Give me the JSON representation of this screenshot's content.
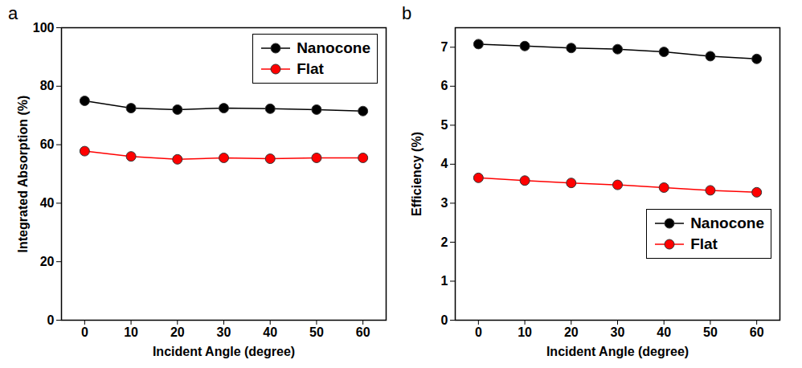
{
  "chart_data": [
    {
      "type": "line",
      "panel_label": "a",
      "x_label": "Incident Angle (degree)",
      "y_label": "Integrated Absorption (%)",
      "x": [
        0,
        10,
        20,
        30,
        40,
        50,
        60
      ],
      "series": [
        {
          "name": "Nanocone",
          "color": "#000000",
          "marker": "circle",
          "values": [
            75,
            72.5,
            72,
            72.5,
            72.3,
            72,
            71.5
          ]
        },
        {
          "name": "Flat",
          "color": "#ff0000",
          "marker": "circle",
          "values": [
            57.8,
            56,
            55,
            55.5,
            55.2,
            55.5,
            55.5
          ]
        }
      ],
      "xlim": [
        -5,
        65
      ],
      "xticks": [
        0,
        10,
        20,
        30,
        40,
        50,
        60
      ],
      "ylim": [
        0,
        100
      ],
      "yticks": [
        0,
        20,
        40,
        60,
        80,
        100
      ],
      "grid": false,
      "legend": "upper right"
    },
    {
      "type": "line",
      "panel_label": "b",
      "x_label": "Incident Angle (degree)",
      "y_label": "Efficiency (%)",
      "x": [
        0,
        10,
        20,
        30,
        40,
        50,
        60
      ],
      "series": [
        {
          "name": "Nanocone",
          "color": "#000000",
          "marker": "circle",
          "values": [
            7.08,
            7.03,
            6.98,
            6.95,
            6.88,
            6.77,
            6.7
          ]
        },
        {
          "name": "Flat",
          "color": "#ff0000",
          "marker": "circle",
          "values": [
            3.65,
            3.58,
            3.52,
            3.47,
            3.4,
            3.33,
            3.28
          ]
        }
      ],
      "xlim": [
        -5,
        65
      ],
      "xticks": [
        0,
        10,
        20,
        30,
        40,
        50,
        60
      ],
      "ylim": [
        0,
        7.5
      ],
      "yticks": [
        0,
        1,
        2,
        3,
        4,
        5,
        6,
        7
      ],
      "grid": false,
      "legend": "center right"
    }
  ]
}
